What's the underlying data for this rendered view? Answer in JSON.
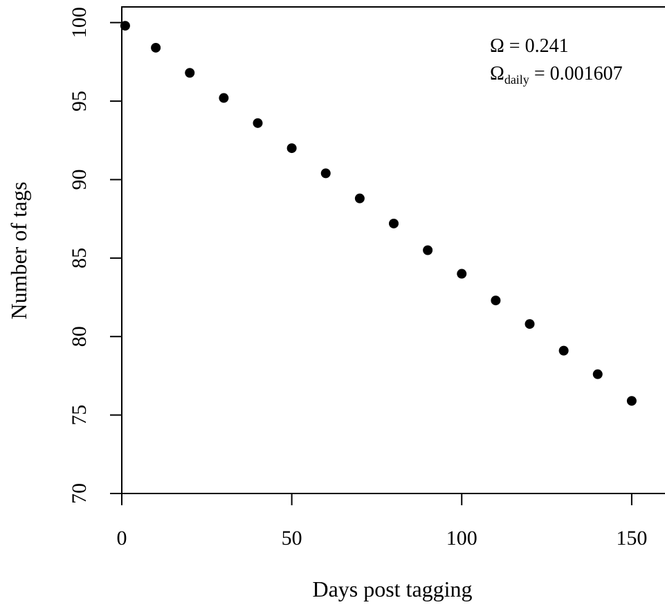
{
  "chart_data": {
    "type": "scatter",
    "xlabel": "Days post tagging",
    "ylabel": "Number of tags",
    "xlim": [
      0,
      160
    ],
    "ylim": [
      70,
      101
    ],
    "x_ticks": [
      0,
      50,
      100,
      150
    ],
    "y_ticks": [
      70,
      75,
      80,
      85,
      90,
      95,
      100
    ],
    "x_tick_labels": [
      "0",
      "50",
      "100",
      "150"
    ],
    "y_tick_labels": [
      "70",
      "75",
      "80",
      "85",
      "90",
      "95",
      "100"
    ],
    "grid": false,
    "series": [
      {
        "x": [
          1,
          10,
          20,
          30,
          40,
          50,
          60,
          70,
          80,
          90,
          100,
          110,
          120,
          130,
          140,
          150
        ],
        "y": [
          99.8,
          98.4,
          96.8,
          95.2,
          93.6,
          92.0,
          90.4,
          88.8,
          87.2,
          85.5,
          84.0,
          82.3,
          80.8,
          79.1,
          77.6,
          75.9
        ],
        "color": "#000000"
      }
    ],
    "annotations": {
      "line1": "Ω = 0.241",
      "line2_main": "Ω",
      "line2_sub": "daily",
      "line2_value": " = 0.001607"
    }
  }
}
